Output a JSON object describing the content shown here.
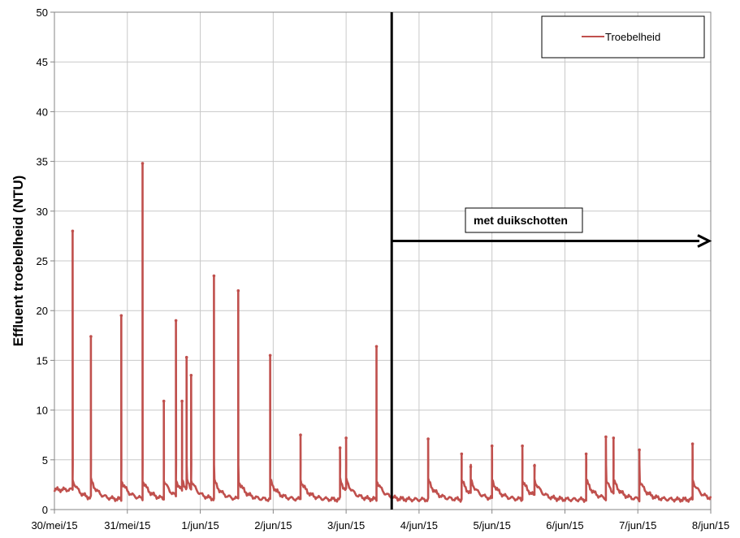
{
  "chart_data": {
    "type": "line",
    "title": "",
    "xlabel": "",
    "ylabel": "Effluent troebelheid (NTU)",
    "ylim": [
      0,
      50
    ],
    "yticks": [
      0,
      5,
      10,
      15,
      20,
      25,
      30,
      35,
      40,
      45,
      50
    ],
    "xlim": [
      "2015-05-30",
      "2015-06-08"
    ],
    "xtick_labels": [
      "30/mei/15",
      "31/mei/15",
      "1/jun/15",
      "2/jun/15",
      "3/jun/15",
      "4/jun/15",
      "5/jun/15",
      "6/jun/15",
      "7/jun/15",
      "8/jun/15"
    ],
    "grid": true,
    "legend": {
      "position": "top-right",
      "entries": [
        "Troebelheid"
      ]
    },
    "series": [
      {
        "name": "Troebelheid",
        "color": "#c0504d",
        "marker": "star",
        "baseline_decay": {
          "level": 1.0,
          "after_spike": 3.0
        },
        "spikes": [
          {
            "x": "2015-05-30T06:00",
            "y": 28.0
          },
          {
            "x": "2015-05-30T12:00",
            "y": 17.4
          },
          {
            "x": "2015-05-30T22:00",
            "y": 19.5
          },
          {
            "x": "2015-05-31T05:00",
            "y": 34.8
          },
          {
            "x": "2015-05-31T12:00",
            "y": 10.9
          },
          {
            "x": "2015-05-31T16:00",
            "y": 19.0
          },
          {
            "x": "2015-05-31T18:00",
            "y": 10.9
          },
          {
            "x": "2015-05-31T19:30",
            "y": 15.3
          },
          {
            "x": "2015-05-31T21:00",
            "y": 13.5
          },
          {
            "x": "2015-06-01T04:30",
            "y": 23.5
          },
          {
            "x": "2015-06-01T12:30",
            "y": 22.0
          },
          {
            "x": "2015-06-01T23:00",
            "y": 15.5
          },
          {
            "x": "2015-06-02T09:00",
            "y": 7.5
          },
          {
            "x": "2015-06-02T22:00",
            "y": 6.2
          },
          {
            "x": "2015-06-03T00:00",
            "y": 7.2
          },
          {
            "x": "2015-06-03T10:00",
            "y": 16.4
          },
          {
            "x": "2015-06-04T03:00",
            "y": 7.1
          },
          {
            "x": "2015-06-04T14:00",
            "y": 5.6
          },
          {
            "x": "2015-06-04T17:00",
            "y": 4.3
          },
          {
            "x": "2015-06-05T00:00",
            "y": 6.4
          },
          {
            "x": "2015-06-05T10:00",
            "y": 6.4
          },
          {
            "x": "2015-06-05T14:00",
            "y": 4.4
          },
          {
            "x": "2015-06-06T07:00",
            "y": 5.6
          },
          {
            "x": "2015-06-06T13:30",
            "y": 7.3
          },
          {
            "x": "2015-06-06T16:00",
            "y": 7.2
          },
          {
            "x": "2015-06-07T00:30",
            "y": 6.0
          },
          {
            "x": "2015-06-07T18:00",
            "y": 6.6
          }
        ]
      }
    ],
    "annotations": [
      {
        "type": "vertical_line",
        "x": "2015-06-03T15:00"
      },
      {
        "type": "arrow",
        "from_x": "2015-06-03T15:00",
        "to_x": "2015-06-08",
        "y": 27,
        "label": "met duikschotten"
      }
    ]
  }
}
